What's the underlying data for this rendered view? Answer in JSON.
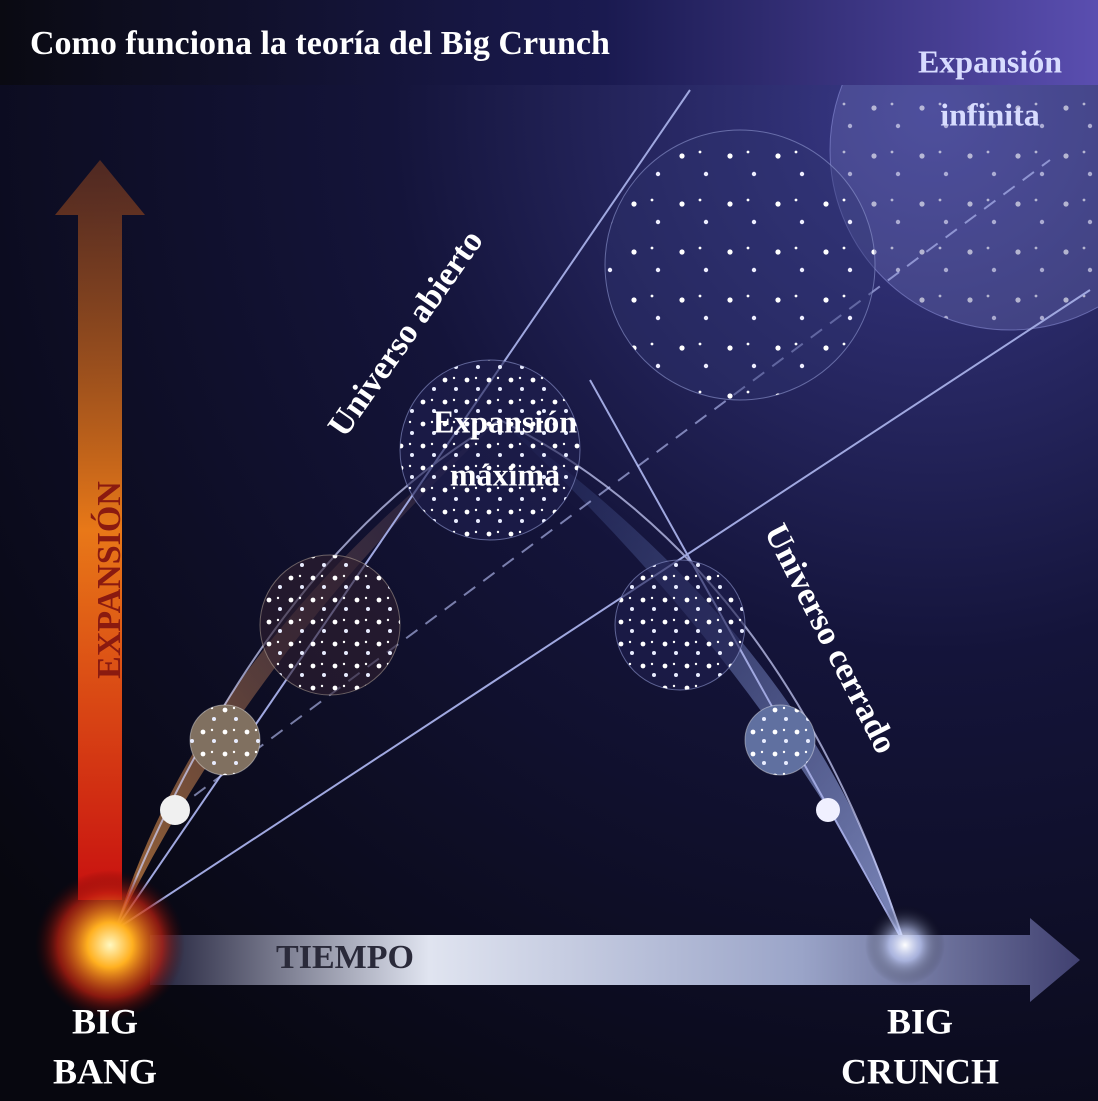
{
  "title": "Como funciona la teoría del Big Crunch",
  "axes": {
    "vertical": "EXPANSIÓN",
    "horizontal": "TIEMPO"
  },
  "nodes": {
    "big_bang": [
      "BIG",
      "BANG"
    ],
    "big_crunch": [
      "BIG",
      "CRUNCH"
    ],
    "expansion_infinita": [
      "Expansión",
      "infinita"
    ],
    "expansion_maxima": [
      "Expansión",
      "máxima"
    ]
  },
  "curves": {
    "open": "Universo abierto",
    "closed": "Universo cerrado"
  }
}
